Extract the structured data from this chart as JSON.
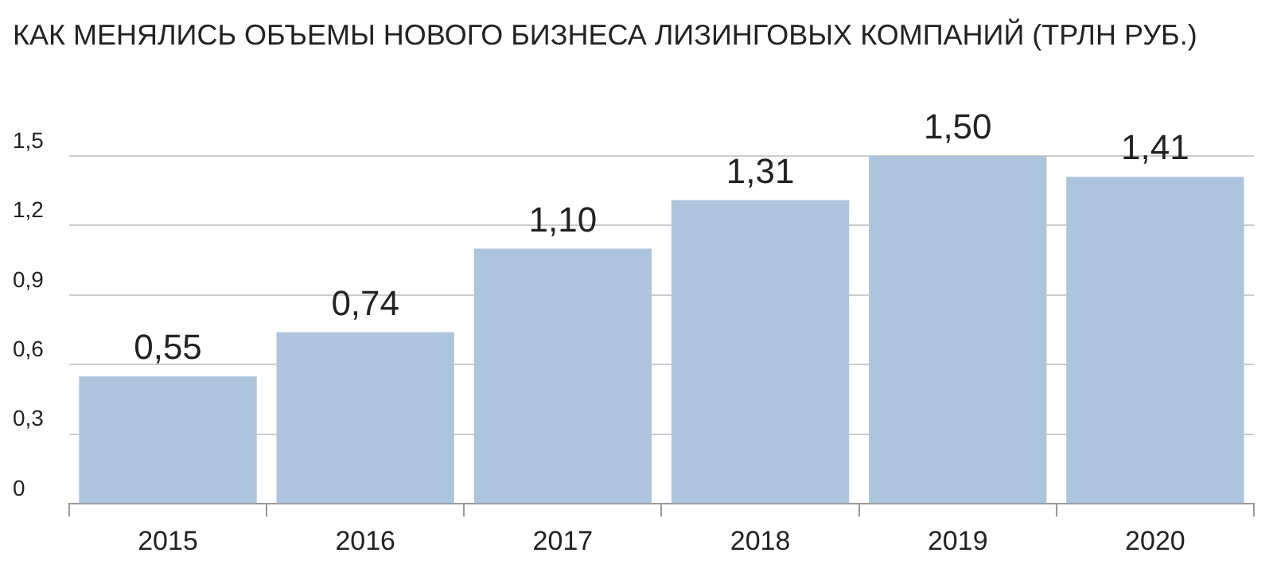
{
  "chart_data": {
    "type": "bar",
    "title": "КАК МЕНЯЛИСЬ ОБЪЕМЫ НОВОГО БИЗНЕСА ЛИЗИНГОВЫХ КОМПАНИЙ (ТРЛН РУБ.)",
    "categories": [
      "2015",
      "2016",
      "2017",
      "2018",
      "2019",
      "2020"
    ],
    "values": [
      0.55,
      0.74,
      1.1,
      1.31,
      1.5,
      1.41
    ],
    "value_labels": [
      "0,55",
      "0,74",
      "1,10",
      "1,31",
      "1,50",
      "1,41"
    ],
    "color": "#adc4dd",
    "ylim": [
      0,
      1.5
    ],
    "yticks": [
      0,
      {
        "value": 0.3,
        "label": "0,3"
      },
      {
        "value": 0.6,
        "label": "0,6"
      },
      {
        "value": 0.9,
        "label": "0,9"
      },
      {
        "value": 1.2,
        "label": "1,2"
      },
      {
        "value": 1.5,
        "label": "1,5"
      }
    ],
    "grid": "y"
  }
}
